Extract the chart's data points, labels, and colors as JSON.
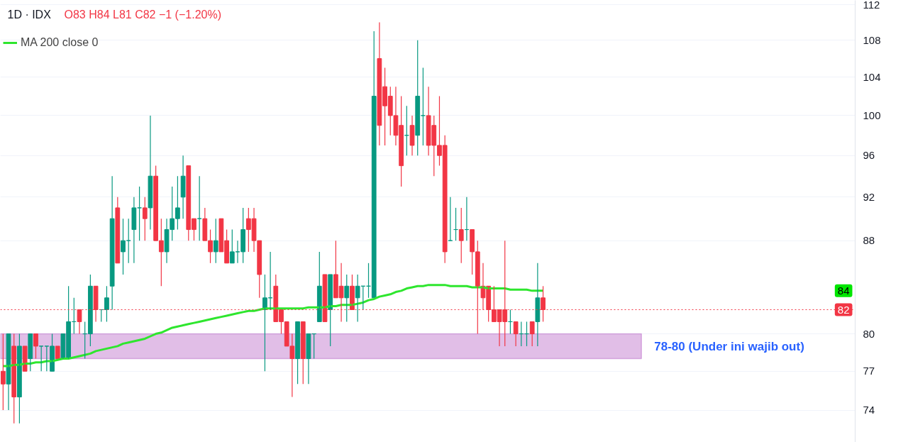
{
  "chart_data": {
    "type": "candlestick",
    "title": "1D · IDX",
    "annotations": [
      "O83 H84 L81 C82 −1 (−1.20%)",
      "84"
    ],
    "log": "y",
    "ylim": [
      71.6,
      112.5
    ],
    "yticks": [
      74,
      77,
      80,
      88,
      92,
      96,
      100,
      104,
      108,
      112
    ],
    "tick_labels": "y",
    "grid": "y",
    "legend": "top left",
    "categories": [
      null,
      null,
      null,
      null,
      null,
      null,
      null,
      null,
      null,
      null,
      null,
      null,
      null,
      null,
      null,
      null,
      null,
      null,
      null,
      null,
      null,
      null,
      null,
      null,
      null,
      null,
      null,
      null,
      null,
      null,
      null,
      null,
      null,
      null,
      null,
      null,
      null,
      null,
      null,
      null,
      null,
      null,
      null,
      null,
      null,
      null,
      null,
      null,
      null,
      null,
      null,
      null,
      null,
      null,
      null,
      null,
      null,
      null,
      null,
      null,
      null,
      null,
      null,
      null,
      null,
      null,
      null,
      null,
      null,
      null,
      null,
      null,
      null,
      null,
      null,
      null,
      null,
      null,
      null,
      null,
      null,
      null,
      null,
      null,
      null,
      null,
      null,
      null,
      null,
      null,
      null,
      null,
      null,
      null,
      null,
      null,
      null,
      null,
      null,
      null
    ],
    "ohlc": [
      [
        77,
        80,
        74,
        76
      ],
      [
        76,
        80,
        74,
        80
      ],
      [
        79,
        80,
        73,
        75
      ],
      [
        75,
        80,
        73,
        79
      ],
      [
        79,
        79,
        77,
        77
      ],
      [
        78,
        80,
        77,
        80
      ],
      [
        80,
        80,
        78,
        79
      ],
      [
        79,
        79,
        77,
        79
      ],
      [
        79,
        79,
        77,
        79
      ],
      [
        77,
        80,
        77,
        79
      ],
      [
        79,
        79,
        78,
        78
      ],
      [
        78,
        80,
        78,
        80
      ],
      [
        78,
        84,
        78,
        81
      ],
      [
        81,
        83,
        80,
        81
      ],
      [
        82,
        82,
        80,
        81
      ],
      [
        80,
        81,
        78,
        80
      ],
      [
        80,
        85,
        79,
        84
      ],
      [
        84,
        84,
        81,
        82
      ],
      [
        82,
        82,
        81,
        82
      ],
      [
        82,
        84,
        81,
        83
      ],
      [
        84,
        94,
        82,
        90
      ],
      [
        91,
        92,
        86,
        86
      ],
      [
        87,
        90,
        85,
        88
      ],
      [
        88,
        90,
        86,
        88
      ],
      [
        89,
        92,
        86,
        91
      ],
      [
        91,
        93,
        88,
        91
      ],
      [
        91,
        92,
        88,
        90
      ],
      [
        91,
        100,
        89,
        94
      ],
      [
        94,
        95,
        88,
        88
      ],
      [
        88,
        90,
        84,
        87
      ],
      [
        87,
        90,
        86,
        89
      ],
      [
        89,
        93,
        88,
        90
      ],
      [
        90,
        94,
        89,
        91
      ],
      [
        92,
        96,
        90,
        94
      ],
      [
        95,
        95,
        88,
        89
      ],
      [
        90,
        90,
        88,
        89
      ],
      [
        90,
        94,
        88,
        90
      ],
      [
        90,
        91,
        88,
        88
      ],
      [
        88,
        89,
        86,
        87
      ],
      [
        87,
        90,
        86,
        88
      ],
      [
        90,
        90,
        87,
        87
      ],
      [
        88,
        89,
        86,
        86
      ],
      [
        86,
        89,
        86,
        87
      ],
      [
        87,
        88,
        86,
        87
      ],
      [
        87,
        91,
        86,
        89
      ],
      [
        90,
        91,
        87,
        89
      ],
      [
        90,
        91,
        87,
        88
      ],
      [
        88,
        88,
        83,
        85
      ],
      [
        82,
        85,
        77,
        83
      ],
      [
        83,
        87,
        82,
        83
      ],
      [
        84,
        85,
        81,
        81
      ],
      [
        82,
        82,
        80,
        81
      ],
      [
        81,
        81,
        79,
        79
      ],
      [
        79,
        80,
        75,
        78
      ],
      [
        78,
        81,
        76,
        81
      ],
      [
        81,
        81,
        76,
        78
      ],
      [
        78,
        80,
        76,
        80
      ],
      [
        80,
        80,
        78,
        80
      ],
      [
        81,
        87,
        81,
        84
      ],
      [
        85,
        85,
        81,
        81
      ],
      [
        82,
        85,
        79,
        85
      ],
      [
        85,
        88,
        83,
        83
      ],
      [
        84,
        86,
        81,
        83
      ],
      [
        83,
        85,
        81,
        84
      ],
      [
        84,
        85,
        82,
        82
      ],
      [
        83,
        85,
        81,
        84
      ],
      [
        84,
        84,
        82,
        84
      ],
      [
        84,
        86,
        83,
        84
      ],
      [
        83,
        109,
        83,
        102
      ],
      [
        106,
        110,
        97,
        99
      ],
      [
        103,
        105,
        97,
        101
      ],
      [
        102,
        103,
        98,
        100
      ],
      [
        100,
        103,
        97,
        98
      ],
      [
        99,
        102,
        93,
        95
      ],
      [
        98,
        101,
        96,
        98
      ],
      [
        99,
        100,
        96,
        97
      ],
      [
        98,
        108,
        96,
        102
      ],
      [
        100,
        105,
        97,
        100
      ],
      [
        100,
        103,
        96,
        97
      ],
      [
        99,
        100,
        94,
        97
      ],
      [
        97,
        102,
        95,
        96
      ],
      [
        97,
        98,
        86,
        87
      ],
      [
        88,
        92,
        88,
        88
      ],
      [
        89,
        91,
        88,
        89
      ],
      [
        89,
        91,
        86,
        88
      ],
      [
        89,
        92,
        88,
        89
      ],
      [
        89,
        89,
        85,
        87
      ],
      [
        87,
        88,
        80,
        84
      ],
      [
        84,
        86,
        82,
        83
      ],
      [
        84,
        84,
        81,
        82
      ],
      [
        82,
        84,
        81,
        81
      ],
      [
        82,
        82,
        79,
        81
      ],
      [
        82,
        88,
        79,
        81
      ],
      [
        81,
        82,
        80,
        81
      ],
      [
        81,
        81,
        79,
        80
      ],
      [
        80,
        81,
        79,
        80
      ],
      [
        80,
        81,
        79,
        80
      ],
      [
        81,
        81,
        79,
        80
      ],
      [
        81,
        86,
        79,
        83
      ],
      [
        83,
        84,
        81,
        82
      ]
    ],
    "colors": [
      "#f23645",
      "#089981",
      "#f23645",
      "#089981",
      "#f23645",
      "#089981",
      "#f23645",
      "#089981",
      "#089981",
      "#089981",
      "#f23645",
      "#089981",
      "#089981",
      "#089981",
      "#f23645",
      "#089981",
      "#089981",
      "#f23645",
      "#089981",
      "#089981",
      "#089981",
      "#f23645",
      "#089981",
      "#089981",
      "#089981",
      "#089981",
      "#f23645",
      "#089981",
      "#f23645",
      "#f23645",
      "#089981",
      "#089981",
      "#089981",
      "#089981",
      "#f23645",
      "#f23645",
      "#089981",
      "#f23645",
      "#f23645",
      "#089981",
      "#f23645",
      "#f23645",
      "#089981",
      "#089981",
      "#089981",
      "#f23645",
      "#f23645",
      "#f23645",
      "#089981",
      "#089981",
      "#f23645",
      "#f23645",
      "#f23645",
      "#f23645",
      "#089981",
      "#f23645",
      "#089981",
      "#089981",
      "#089981",
      "#f23645",
      "#089981",
      "#f23645",
      "#f23645",
      "#089981",
      "#f23645",
      "#089981",
      "#089981",
      "#089981",
      "#089981",
      "#f23645",
      "#f23645",
      "#f23645",
      "#f23645",
      "#f23645",
      "#089981",
      "#f23645",
      "#089981",
      "#089981",
      "#f23645",
      "#f23645",
      "#f23645",
      "#f23645",
      "#089981",
      "#089981",
      "#f23645",
      "#089981",
      "#f23645",
      "#f23645",
      "#f23645",
      "#f23645",
      "#f23645",
      "#f23645",
      "#f23645",
      "#089981",
      "#f23645",
      "#089981",
      "#089981",
      "#f23645",
      "#089981",
      "#f23645"
    ],
    "series": [
      {
        "type": "line",
        "name": "MA 200 close 0",
        "color": "#2ee62e",
        "values": [
          77.4,
          77.4,
          77.5,
          77.5,
          77.6,
          77.6,
          77.7,
          77.7,
          77.8,
          77.8,
          77.9,
          78.0,
          78.0,
          78.1,
          78.2,
          78.3,
          78.4,
          78.6,
          78.7,
          78.8,
          78.9,
          79.0,
          79.2,
          79.3,
          79.4,
          79.5,
          79.6,
          79.8,
          80.0,
          80.1,
          80.3,
          80.5,
          80.6,
          80.7,
          80.8,
          80.9,
          81.0,
          81.1,
          81.2,
          81.3,
          81.4,
          81.5,
          81.6,
          81.7,
          81.8,
          81.9,
          81.9,
          82.0,
          82.1,
          82.1,
          82.1,
          82.1,
          82.1,
          82.1,
          82.1,
          82.1,
          82.2,
          82.2,
          82.2,
          82.2,
          82.3,
          82.3,
          82.4,
          82.4,
          82.4,
          82.5,
          82.6,
          82.8,
          82.9,
          83.1,
          83.2,
          83.3,
          83.5,
          83.6,
          83.8,
          83.9,
          84.0,
          84.0,
          84.1,
          84.1,
          84.1,
          84.1,
          84.0,
          84.0,
          84.0,
          84.0,
          83.9,
          83.9,
          83.9,
          83.8,
          83.8,
          83.8,
          83.8,
          83.7,
          83.7,
          83.7,
          83.7,
          83.6,
          83.6,
          83.6
        ]
      }
    ],
    "ref_lines": [
      {
        "axis": "y",
        "value": 82,
        "label": "82",
        "color": "#f23645",
        "line_style": "dotted"
      }
    ],
    "bands": [
      {
        "axis": "y",
        "from": 78,
        "to": 80,
        "label": "78-80 (Under ini wajib out)",
        "color": "#e1bee7"
      }
    ]
  }
}
